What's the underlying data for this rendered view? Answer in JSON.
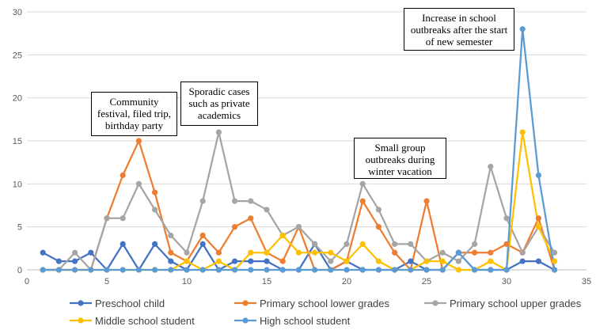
{
  "chart_data": {
    "type": "line",
    "title": "",
    "xlabel": "",
    "ylabel": "",
    "xlim": [
      0,
      35
    ],
    "ylim": [
      0,
      30
    ],
    "x_ticks": [
      "0",
      "5",
      "10",
      "15",
      "20",
      "25",
      "30",
      "35"
    ],
    "y_ticks": [
      "0",
      "5",
      "10",
      "15",
      "20",
      "25",
      "30"
    ],
    "x": [
      1,
      2,
      3,
      4,
      5,
      6,
      7,
      8,
      9,
      10,
      11,
      12,
      13,
      14,
      15,
      16,
      17,
      18,
      19,
      20,
      21,
      22,
      23,
      24,
      25,
      26,
      27,
      28,
      29,
      30,
      31,
      32,
      33
    ],
    "series": [
      {
        "name": "Preschool child",
        "color": "#4472C4",
        "values": [
          2,
          1,
          1,
          2,
          0,
          3,
          0,
          3,
          1,
          0,
          3,
          0,
          1,
          1,
          1,
          0,
          0,
          3,
          0,
          1,
          0,
          0,
          0,
          1,
          0,
          0,
          2,
          0,
          0,
          0,
          1,
          1,
          0
        ]
      },
      {
        "name": "Primary school lower grades",
        "color": "#ED7D31",
        "values": [
          0,
          0,
          0,
          0,
          6,
          11,
          15,
          9,
          2,
          1,
          4,
          2,
          5,
          6,
          2,
          1,
          5,
          0,
          0,
          1,
          8,
          5,
          2,
          0,
          8,
          0,
          2,
          2,
          2,
          3,
          2,
          6,
          0
        ]
      },
      {
        "name": "Primary school upper grades",
        "color": "#A5A5A5",
        "values": [
          0,
          0,
          2,
          0,
          6,
          6,
          10,
          7,
          4,
          2,
          8,
          16,
          8,
          8,
          7,
          4,
          5,
          3,
          1,
          3,
          10,
          7,
          3,
          3,
          1,
          2,
          1,
          3,
          12,
          6,
          2,
          5,
          2
        ]
      },
      {
        "name": "Middle school student",
        "color": "#FFC000",
        "values": [
          0,
          0,
          0,
          0,
          0,
          0,
          0,
          0,
          0,
          1,
          0,
          1,
          0,
          2,
          2,
          4,
          2,
          2,
          2,
          1,
          3,
          1,
          0,
          0,
          1,
          1,
          0,
          0,
          1,
          0,
          16,
          5,
          1
        ]
      },
      {
        "name": "High school student",
        "color": "#5B9BD5",
        "values": [
          0,
          0,
          0,
          0,
          0,
          0,
          0,
          0,
          0,
          0,
          0,
          0,
          0,
          0,
          0,
          0,
          0,
          0,
          0,
          0,
          0,
          0,
          0,
          0,
          0,
          0,
          2,
          0,
          0,
          0,
          28,
          11,
          0
        ]
      }
    ],
    "annotations": [
      {
        "text": "Community festival, filed trip, birthday party"
      },
      {
        "text": "Sporadic cases such as private academics"
      },
      {
        "text": "Small group outbreaks during winter vacation"
      },
      {
        "text": "Increase in school outbreaks after the start of new semester"
      }
    ],
    "grid": true,
    "legend_position": "bottom"
  }
}
